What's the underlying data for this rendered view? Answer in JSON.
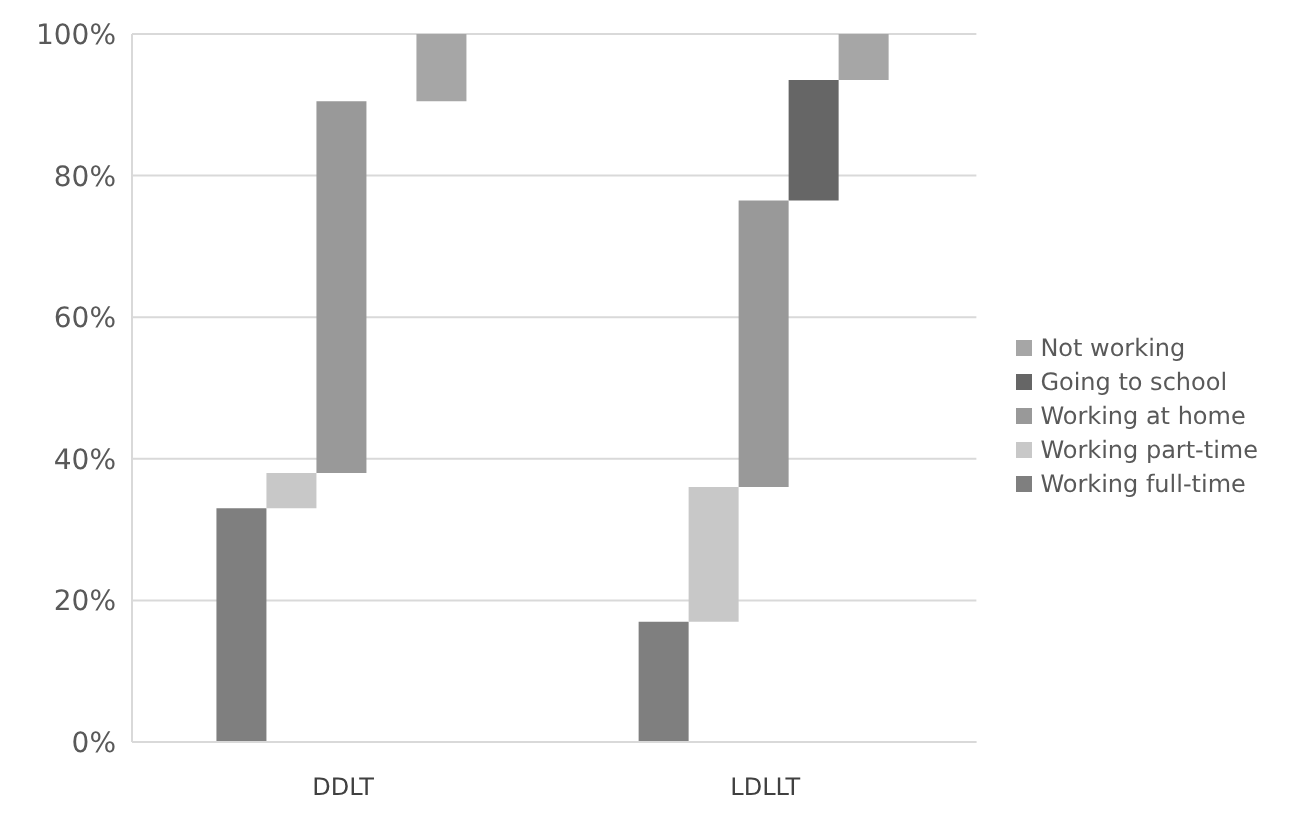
{
  "chart_data": {
    "type": "bar",
    "categories": [
      "DDLT",
      "LDLLT"
    ],
    "series": [
      {
        "name": "Working full-time",
        "color": "#7f7f7f",
        "values": [
          33,
          17
        ],
        "base": [
          0,
          0
        ]
      },
      {
        "name": "Working part-time",
        "color": "#c8c8c8",
        "values": [
          5,
          19
        ],
        "base": [
          33,
          17
        ]
      },
      {
        "name": "Working at home",
        "color": "#999999",
        "values": [
          52.5,
          40.5
        ],
        "base": [
          38,
          36
        ]
      },
      {
        "name": "Going to school",
        "color": "#666666",
        "values": [
          null,
          17
        ],
        "base": [
          null,
          76.5
        ]
      },
      {
        "name": "Not working",
        "color": "#a6a6a6",
        "values": [
          9.5,
          6.5
        ],
        "base": [
          90.5,
          93.5
        ]
      }
    ],
    "ylim": [
      0,
      100
    ],
    "yticks": [
      {
        "value": 0,
        "label": "0%"
      },
      {
        "value": 20,
        "label": "20%"
      },
      {
        "value": 40,
        "label": "40%"
      },
      {
        "value": 60,
        "label": "60%"
      },
      {
        "value": 80,
        "label": "80%"
      },
      {
        "value": 100,
        "label": "100%"
      }
    ],
    "grid": "y",
    "legend": "right"
  }
}
